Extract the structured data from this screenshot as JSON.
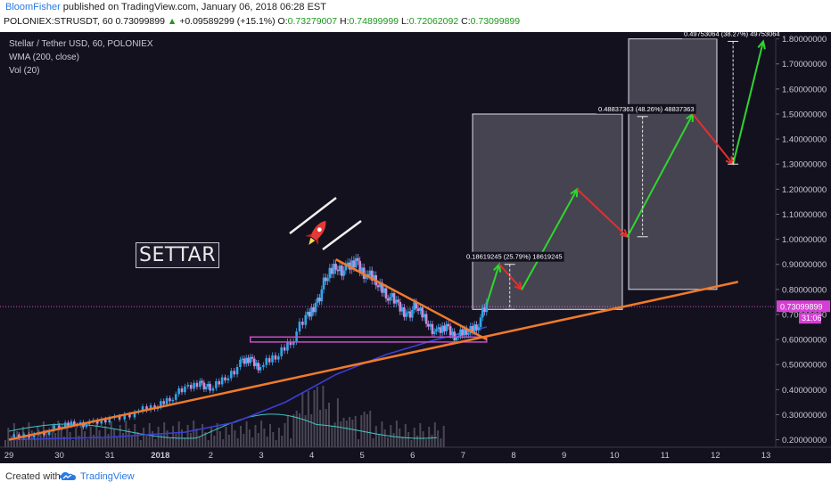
{
  "header": {
    "author": "BloomFisher",
    "published": " published on TradingView.com, January 06, 2018 06:28 EST",
    "symbol": "POLONIEX:STRUSDT, 60",
    "last": "0.73099899",
    "change": "+0.09589299 (+15.1%)",
    "o_label": "O:",
    "o_value": "0.73279007",
    "h_label": "H:",
    "h_value": "0.74899999",
    "l_label": "L:",
    "l_value": "0.72062092",
    "c_label": "C:",
    "c_value": "0.73099899"
  },
  "legend": {
    "title": "Stellar / Tether USD, 60, POLONIEX",
    "wma": "WMA (200, close)",
    "vol": "Vol (20)"
  },
  "annotation": {
    "settar": "SETTAR",
    "measure1": "0.18619245 (25.79%) 18619245",
    "measure2": "0.48837363 (48.26%) 48837363",
    "measure3": "0.49753064 (38.27%) 49753064"
  },
  "price_tag": {
    "value": "0.73099899",
    "countdown": "31:06"
  },
  "footer": {
    "created": "Created with",
    "brand": "TradingView"
  },
  "colors": {
    "background": "#14111f",
    "up": "#2fa6e8",
    "down": "#c98bd9",
    "wma": "#3a3fd6",
    "trendline": "#f07b2a",
    "support": "#c74ec7",
    "target_up": "#2fd62f",
    "target_down": "#e03030",
    "volume": "#4a4755",
    "vol_ma": "#3fc7c0"
  },
  "chart_data": {
    "type": "candlestick",
    "yaxis_ticks": [
      "1.80000000",
      "1.70000000",
      "1.60000000",
      "1.50000000",
      "1.40000000",
      "1.30000000",
      "1.20000000",
      "1.10000000",
      "1.00000000",
      "0.90000000",
      "0.80000000",
      "0.70000000",
      "0.60000000",
      "0.50000000",
      "0.40000000",
      "0.30000000",
      "0.20000000"
    ],
    "xaxis_ticks": [
      "29",
      "30",
      "31",
      "2018",
      "2",
      "3",
      "4",
      "5",
      "6",
      "7",
      "8",
      "9",
      "10",
      "11",
      "12",
      "13"
    ],
    "ylim": [
      0.17,
      1.82
    ],
    "close_path": [
      [
        0.0,
        0.21
      ],
      [
        0.5,
        0.22
      ],
      [
        1.0,
        0.25
      ],
      [
        1.3,
        0.27
      ],
      [
        1.6,
        0.26
      ],
      [
        2.0,
        0.28
      ],
      [
        2.5,
        0.31
      ],
      [
        2.9,
        0.33
      ],
      [
        3.2,
        0.37
      ],
      [
        3.5,
        0.4
      ],
      [
        3.8,
        0.43
      ],
      [
        4.0,
        0.4
      ],
      [
        4.3,
        0.45
      ],
      [
        4.6,
        0.5
      ],
      [
        4.8,
        0.52
      ],
      [
        5.0,
        0.49
      ],
      [
        5.3,
        0.53
      ],
      [
        5.6,
        0.6
      ],
      [
        5.9,
        0.68
      ],
      [
        6.1,
        0.74
      ],
      [
        6.3,
        0.84
      ],
      [
        6.5,
        0.9
      ],
      [
        6.7,
        0.87
      ],
      [
        6.9,
        0.91
      ],
      [
        7.1,
        0.86
      ],
      [
        7.3,
        0.83
      ],
      [
        7.5,
        0.79
      ],
      [
        7.7,
        0.74
      ],
      [
        7.9,
        0.7
      ],
      [
        8.1,
        0.73
      ],
      [
        8.3,
        0.68
      ],
      [
        8.5,
        0.62
      ],
      [
        8.7,
        0.65
      ],
      [
        8.9,
        0.61
      ],
      [
        9.1,
        0.63
      ],
      [
        9.3,
        0.66
      ],
      [
        9.5,
        0.73
      ]
    ],
    "wma_path": [
      [
        0.0,
        0.2
      ],
      [
        2.0,
        0.21
      ],
      [
        3.5,
        0.23
      ],
      [
        4.5,
        0.27
      ],
      [
        5.5,
        0.35
      ],
      [
        6.5,
        0.46
      ],
      [
        7.5,
        0.54
      ],
      [
        8.5,
        0.6
      ],
      [
        9.5,
        0.65
      ]
    ],
    "trendline_support": [
      [
        0.0,
        0.2
      ],
      [
        14.5,
        0.83
      ]
    ],
    "trendline_resistance": [
      [
        6.5,
        0.92
      ],
      [
        9.5,
        0.6
      ]
    ],
    "support_zone": [
      [
        4.8,
        0.6
      ],
      [
        9.5,
        0.6
      ]
    ],
    "projection_path": [
      [
        9.5,
        0.74
      ],
      [
        9.75,
        0.9
      ],
      [
        10.2,
        0.8
      ],
      [
        11.3,
        1.2
      ],
      [
        12.3,
        1.01
      ],
      [
        13.6,
        1.5
      ],
      [
        14.4,
        1.3
      ],
      [
        15.0,
        1.79
      ]
    ]
  }
}
